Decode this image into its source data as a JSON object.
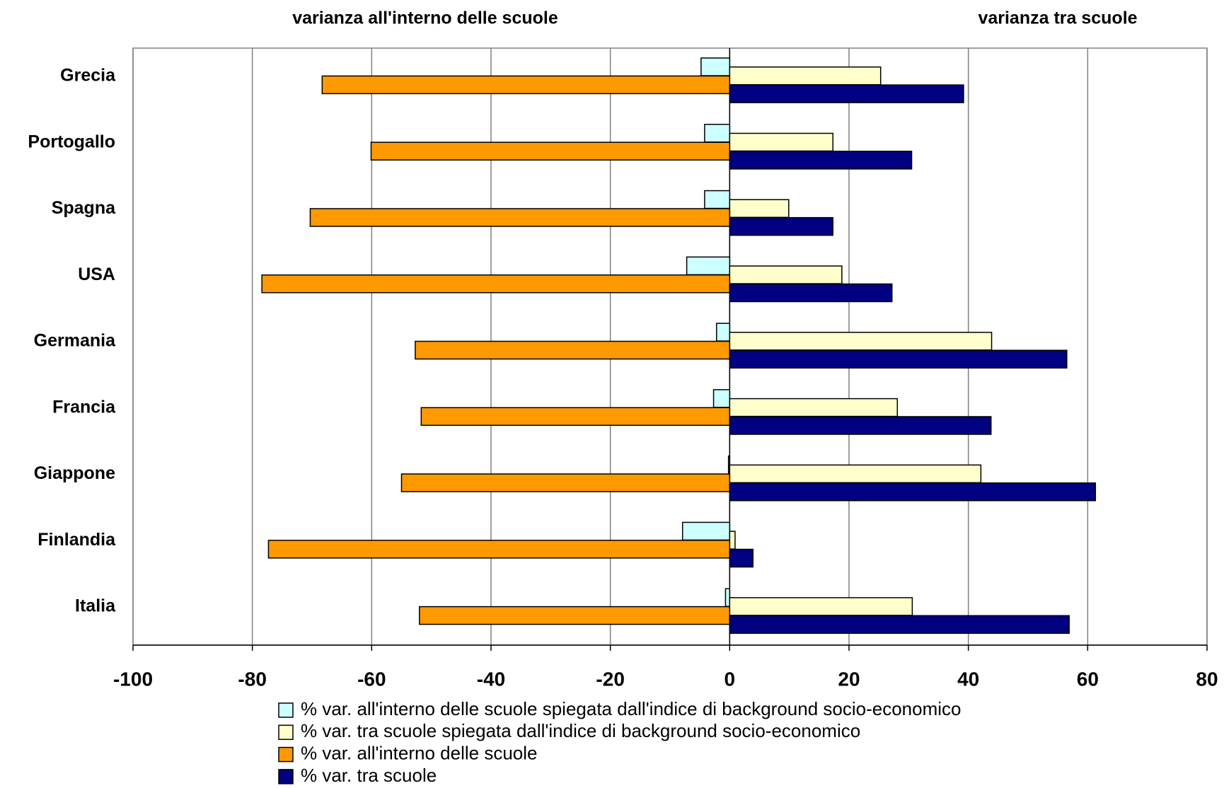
{
  "chart_data": {
    "type": "bar",
    "orientation": "horizontal",
    "annotations": [
      "varianza all'interno delle scuole",
      "varianza tra scuole"
    ],
    "categories": [
      "Grecia",
      "Portogallo",
      "Spagna",
      "USA",
      "Germania",
      "Francia",
      "Giappone",
      "Finlandia",
      "Italia"
    ],
    "series": [
      {
        "name": "% var. all'interno delle scuole spiegata dall'indice di background socio-economico",
        "color": "#ccffff",
        "values": [
          -4.8,
          -4.2,
          -4.2,
          -7.2,
          -2.2,
          -2.7,
          -0.2,
          -7.9,
          -0.7
        ]
      },
      {
        "name": "% var. tra scuole spiegata dall'indice di background socio-economico",
        "color": "#ffffcc",
        "values": [
          25.3,
          17.3,
          9.9,
          18.8,
          43.9,
          28.1,
          42.1,
          0.9,
          30.6
        ]
      },
      {
        "name": "% var. all'interno delle scuole",
        "color": "#ff9900",
        "values": [
          -68.3,
          -60.1,
          -70.3,
          -78.4,
          -52.7,
          -51.7,
          -55.0,
          -77.3,
          -52.0
        ]
      },
      {
        "name": "% var. tra scuole",
        "color": "#000080",
        "values": [
          39.2,
          30.5,
          17.3,
          27.2,
          56.5,
          43.8,
          61.3,
          3.9,
          56.9
        ]
      }
    ],
    "xlim": [
      -100,
      80
    ],
    "xticks": [
      -100,
      -80,
      -60,
      -40,
      -20,
      0,
      20,
      40,
      60,
      80
    ],
    "grid": true
  }
}
